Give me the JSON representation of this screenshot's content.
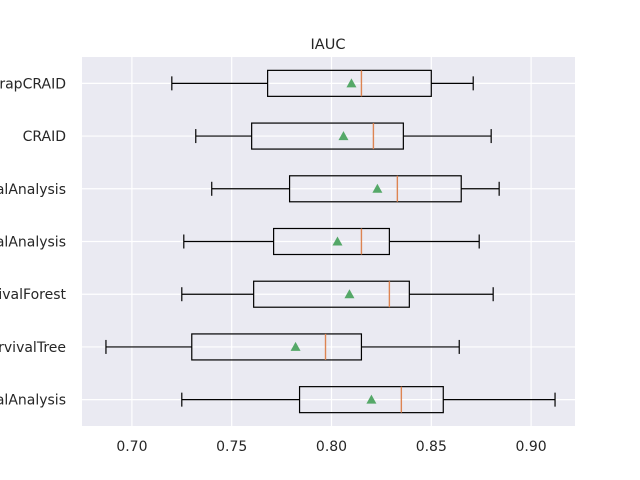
{
  "chart_data": {
    "type": "boxplot",
    "orientation": "horizontal",
    "title": "IAUC",
    "xlabel": "",
    "ylabel": "",
    "xlim": [
      0.675,
      0.922
    ],
    "xticks": [
      "0.70",
      "0.75",
      "0.80",
      "0.85",
      "0.90"
    ],
    "grid": true,
    "colors": {
      "background": "#eaeaf2",
      "grid": "#ffffff",
      "box": "#000000",
      "median": "#dd8452",
      "mean": "#55a868"
    },
    "categories": [
      "rapCRAID",
      "CRAID",
      "alAnalysis",
      "alAnalysis",
      "vivalForest",
      "rvivalTree",
      "alAnalysis"
    ],
    "boxes": [
      {
        "whislo": 0.72,
        "q1": 0.768,
        "med": 0.815,
        "q3": 0.85,
        "whishi": 0.871,
        "mean": 0.81
      },
      {
        "whislo": 0.732,
        "q1": 0.76,
        "med": 0.821,
        "q3": 0.836,
        "whishi": 0.88,
        "mean": 0.806
      },
      {
        "whislo": 0.74,
        "q1": 0.779,
        "med": 0.833,
        "q3": 0.865,
        "whishi": 0.884,
        "mean": 0.823
      },
      {
        "whislo": 0.726,
        "q1": 0.771,
        "med": 0.815,
        "q3": 0.829,
        "whishi": 0.874,
        "mean": 0.803
      },
      {
        "whislo": 0.725,
        "q1": 0.761,
        "med": 0.829,
        "q3": 0.839,
        "whishi": 0.881,
        "mean": 0.809
      },
      {
        "whislo": 0.687,
        "q1": 0.73,
        "med": 0.797,
        "q3": 0.815,
        "whishi": 0.864,
        "mean": 0.782
      },
      {
        "whislo": 0.725,
        "q1": 0.784,
        "med": 0.835,
        "q3": 0.856,
        "whishi": 0.912,
        "mean": 0.82
      }
    ]
  }
}
